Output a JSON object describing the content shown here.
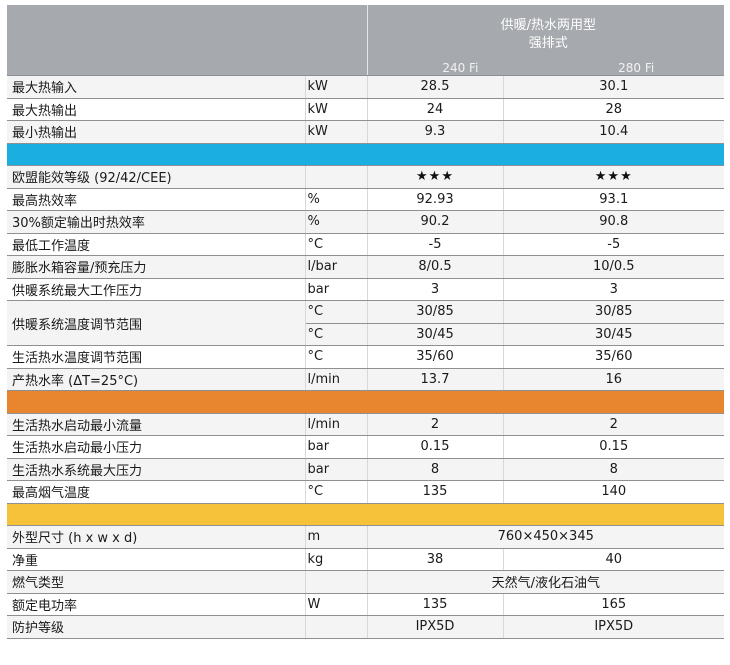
{
  "header": {
    "title": "供暖/热水两用型",
    "subtitle": "强排式",
    "models": [
      "240 Fi",
      "280 Fi"
    ]
  },
  "colors": {
    "header_bg": "#a6a9ad",
    "band_blue": "#1aafe0",
    "band_orange": "#e8862f",
    "band_yellow": "#f5c23a"
  },
  "rows": [
    {
      "name": "最大热输入",
      "unit": "kW",
      "v1": "28.5",
      "v2": "30.1"
    },
    {
      "name": "最大热输出",
      "unit": "kW",
      "v1": "24",
      "v2": "28"
    },
    {
      "name": "最小热输出",
      "unit": "kW",
      "v1": "9.3",
      "v2": "10.4"
    },
    {
      "name": "欧盟能效等级 (92/42/CEE)",
      "unit": "",
      "v1": "★★★",
      "v2": "★★★"
    },
    {
      "name": "最高热效率",
      "unit": "%",
      "v1": "92.93",
      "v2": "93.1"
    },
    {
      "name": "30%额定输出时热效率",
      "unit": "%",
      "v1": "90.2",
      "v2": "90.8"
    },
    {
      "name": "最低工作温度",
      "unit": "°C",
      "v1": "-5",
      "v2": "-5"
    },
    {
      "name": "膨胀水箱容量/预充压力",
      "unit": "l/bar",
      "v1": "8/0.5",
      "v2": "10/0.5"
    },
    {
      "name": "供暖系统最大工作压力",
      "unit": "bar",
      "v1": "3",
      "v2": "3"
    },
    {
      "name": "供暖系统温度调节范围",
      "unit": "°C",
      "v1": "30/85",
      "v2": "30/85"
    },
    {
      "name": "",
      "unit": "°C",
      "v1": "30/45",
      "v2": "30/45"
    },
    {
      "name": "生活热水温度调节范围",
      "unit": "°C",
      "v1": "35/60",
      "v2": "35/60"
    },
    {
      "name": "产热水率 (ΔT=25°C)",
      "unit": "l/min",
      "v1": "13.7",
      "v2": "16"
    },
    {
      "name": "生活热水启动最小流量",
      "unit": "l/min",
      "v1": "2",
      "v2": "2"
    },
    {
      "name": "生活热水启动最小压力",
      "unit": "bar",
      "v1": "0.15",
      "v2": "0.15"
    },
    {
      "name": "生活热水系统最大压力",
      "unit": "bar",
      "v1": "8",
      "v2": "8"
    },
    {
      "name": "最高烟气温度",
      "unit": "°C",
      "v1": "135",
      "v2": "140"
    },
    {
      "name": "外型尺寸 (h x w x d)",
      "unit": "m",
      "merged": "760×450×345"
    },
    {
      "name": "净重",
      "unit": "kg",
      "v1": "38",
      "v2": "40"
    },
    {
      "name": "燃气类型",
      "unit": "",
      "merged": "天然气/液化石油气"
    },
    {
      "name": "额定电功率",
      "unit": "W",
      "v1": "135",
      "v2": "165"
    },
    {
      "name": "防护等级",
      "unit": "",
      "v1": "IPX5D",
      "v2": "IPX5D"
    }
  ]
}
